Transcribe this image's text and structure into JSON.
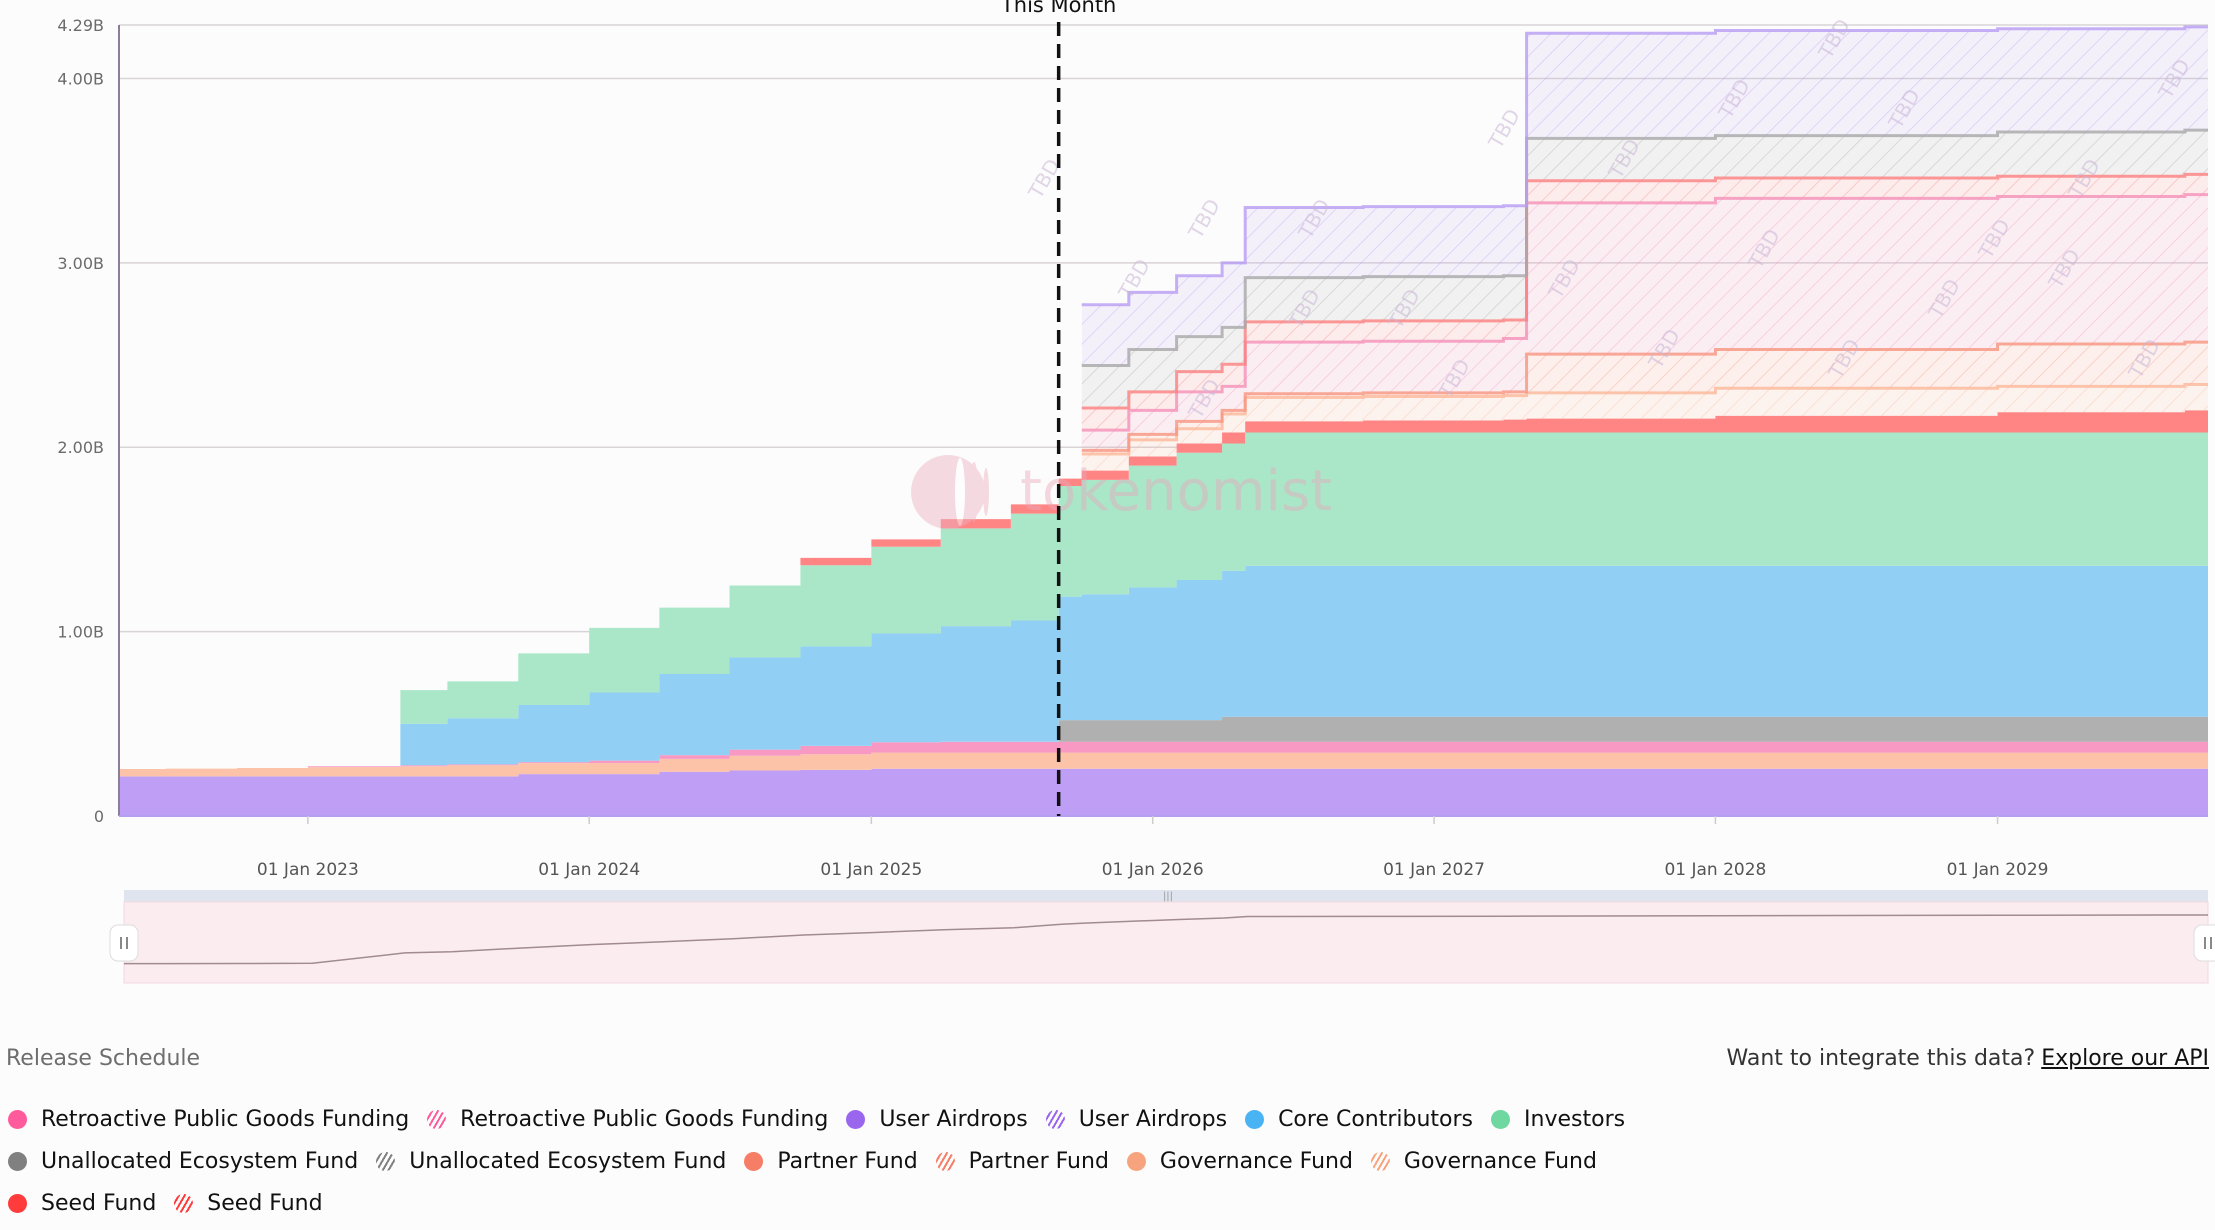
{
  "chart_data": {
    "type": "area",
    "stacked": true,
    "step": true,
    "title": "Release Schedule",
    "ylim": [
      0,
      4.29
    ],
    "y_unit": "B",
    "yticks": [
      {
        "v": 0,
        "label": "0"
      },
      {
        "v": 1,
        "label": "1.00B"
      },
      {
        "v": 2,
        "label": "2.00B"
      },
      {
        "v": 3,
        "label": "3.00B"
      },
      {
        "v": 4,
        "label": "4.00B"
      },
      {
        "v": 4.29,
        "label": "4.29B"
      }
    ],
    "xlim": [
      "2022-05-01",
      "2029-10-01"
    ],
    "xticks": [
      {
        "date": "2023-01-01",
        "label": "01 Jan 2023"
      },
      {
        "date": "2024-01-01",
        "label": "01 Jan 2024"
      },
      {
        "date": "2025-01-01",
        "label": "01 Jan 2025"
      },
      {
        "date": "2026-01-01",
        "label": "01 Jan 2026"
      },
      {
        "date": "2027-01-01",
        "label": "01 Jan 2027"
      },
      {
        "date": "2028-01-01",
        "label": "01 Jan 2028"
      },
      {
        "date": "2029-01-01",
        "label": "01 Jan 2029"
      }
    ],
    "grid": true,
    "marker": {
      "date": "2025-09-01",
      "label": "This Month"
    },
    "watermark": "tokenomist",
    "tbd_label": "TBD",
    "dates": [
      "2022-05-01",
      "2022-07-01",
      "2022-10-01",
      "2023-01-01",
      "2023-05-01",
      "2023-07-01",
      "2023-10-01",
      "2024-01-01",
      "2024-04-01",
      "2024-07-01",
      "2024-10-01",
      "2025-01-01",
      "2025-04-01",
      "2025-07-01",
      "2025-09-01",
      "2025-10-01",
      "2025-12-01",
      "2026-02-01",
      "2026-04-01",
      "2026-05-01",
      "2026-10-01",
      "2027-04-01",
      "2027-05-01",
      "2028-01-01",
      "2029-01-01",
      "2029-09-01"
    ],
    "series": [
      {
        "name": "User Airdrops",
        "hatched": false,
        "color": "#bf9ff5",
        "values": [
          0.215,
          0.215,
          0.215,
          0.215,
          0.215,
          0.215,
          0.227,
          0.227,
          0.24,
          0.247,
          0.25,
          0.256,
          0.256,
          0.256,
          0.256,
          0.256,
          0.256,
          0.256,
          0.256,
          0.256,
          0.256,
          0.256,
          0.256,
          0.256,
          0.256,
          0.256
        ]
      },
      {
        "name": "Governance Fund",
        "hatched": false,
        "color": "#fdc3a8",
        "values": [
          0.04,
          0.042,
          0.045,
          0.05,
          0.055,
          0.06,
          0.06,
          0.06,
          0.07,
          0.08,
          0.085,
          0.088,
          0.088,
          0.088,
          0.088,
          0.088,
          0.088,
          0.088,
          0.088,
          0.088,
          0.088,
          0.088,
          0.088,
          0.088,
          0.088,
          0.088
        ]
      },
      {
        "name": "Retroactive Public Goods Funding",
        "hatched": false,
        "color": "#f799c3",
        "values": [
          0,
          0,
          0,
          0.005,
          0.005,
          0.005,
          0.005,
          0.013,
          0.02,
          0.033,
          0.045,
          0.056,
          0.059,
          0.059,
          0.059,
          0.059,
          0.059,
          0.059,
          0.059,
          0.059,
          0.059,
          0.059,
          0.059,
          0.059,
          0.059,
          0.059
        ]
      },
      {
        "name": "Unallocated Ecosystem Fund",
        "hatched": false,
        "color": "#b0b0b0",
        "values": [
          0,
          0,
          0,
          0,
          0,
          0,
          0,
          0,
          0,
          0,
          0,
          0,
          0,
          0,
          0.117,
          0.117,
          0.117,
          0.117,
          0.135,
          0.135,
          0.135,
          0.135,
          0.135,
          0.135,
          0.135,
          0.135
        ]
      },
      {
        "name": "Core Contributors",
        "hatched": false,
        "color": "#91cff5",
        "values": [
          0,
          0,
          0,
          0,
          0.225,
          0.25,
          0.31,
          0.37,
          0.44,
          0.5,
          0.54,
          0.59,
          0.627,
          0.657,
          0.67,
          0.683,
          0.72,
          0.76,
          0.792,
          0.819,
          0.819,
          0.819,
          0.819,
          0.819,
          0.819,
          0.819
        ]
      },
      {
        "name": "Investors",
        "hatched": false,
        "color": "#aae6c8",
        "values": [
          0,
          0,
          0,
          0,
          0.183,
          0.2,
          0.28,
          0.35,
          0.36,
          0.39,
          0.44,
          0.47,
          0.53,
          0.58,
          0.6,
          0.62,
          0.66,
          0.69,
          0.69,
          0.723,
          0.723,
          0.723,
          0.723,
          0.723,
          0.723,
          0.723
        ]
      },
      {
        "name": "Seed Fund",
        "hatched": false,
        "color": "#ff8585",
        "values": [
          0,
          0,
          0,
          0,
          0,
          0,
          0,
          0,
          0,
          0,
          0.04,
          0.04,
          0.05,
          0.05,
          0.04,
          0.05,
          0.05,
          0.05,
          0.06,
          0.06,
          0.065,
          0.07,
          0.075,
          0.09,
          0.11,
          0.12
        ]
      },
      {
        "name": "Governance Fund",
        "hatched": true,
        "color": "#fbb89a",
        "values": [
          null,
          null,
          null,
          null,
          null,
          null,
          null,
          null,
          null,
          null,
          null,
          null,
          null,
          null,
          null,
          0.09,
          0.09,
          0.08,
          0.1,
          0.13,
          0.13,
          0.13,
          0.14,
          0.15,
          0.14,
          0.14
        ]
      },
      {
        "name": "Partner Fund",
        "hatched": true,
        "color": "#f7957f",
        "values": [
          null,
          null,
          null,
          null,
          null,
          null,
          null,
          null,
          null,
          null,
          null,
          null,
          null,
          null,
          null,
          0.02,
          0.03,
          0.04,
          0.02,
          0.02,
          0.02,
          0.02,
          0.21,
          0.21,
          0.23,
          0.23
        ]
      },
      {
        "name": "Retroactive Public Goods Funding",
        "hatched": true,
        "color": "#f590b8",
        "values": [
          null,
          null,
          null,
          null,
          null,
          null,
          null,
          null,
          null,
          null,
          null,
          null,
          null,
          null,
          null,
          0.11,
          0.13,
          0.16,
          0.13,
          0.28,
          0.28,
          0.29,
          0.82,
          0.82,
          0.8,
          0.8
        ]
      },
      {
        "name": "Seed Fund",
        "hatched": true,
        "color": "#fb8080",
        "values": [
          null,
          null,
          null,
          null,
          null,
          null,
          null,
          null,
          null,
          null,
          null,
          null,
          null,
          null,
          null,
          0.12,
          0.1,
          0.11,
          0.12,
          0.11,
          0.11,
          0.1,
          0.12,
          0.11,
          0.11,
          0.11
        ]
      },
      {
        "name": "Unallocated Ecosystem Fund",
        "hatched": true,
        "color": "#a8a8a8",
        "values": [
          null,
          null,
          null,
          null,
          null,
          null,
          null,
          null,
          null,
          null,
          null,
          null,
          null,
          null,
          null,
          0.23,
          0.23,
          0.19,
          0.2,
          0.24,
          0.24,
          0.24,
          0.23,
          0.23,
          0.24,
          0.24
        ]
      },
      {
        "name": "User Airdrops",
        "hatched": true,
        "color": "#b89cf2",
        "values": [
          null,
          null,
          null,
          null,
          null,
          null,
          null,
          null,
          null,
          null,
          null,
          null,
          null,
          null,
          null,
          0.33,
          0.31,
          0.33,
          0.35,
          0.38,
          0.38,
          0.38,
          0.57,
          0.57,
          0.56,
          0.56
        ]
      }
    ]
  },
  "section_title": "Release Schedule",
  "api_promo": {
    "text": "Want to integrate this data?",
    "link": "Explore our API"
  },
  "legend": [
    [
      {
        "label": "Retroactive Public Goods Funding",
        "color": "#ff5a9c",
        "hatched": false
      },
      {
        "label": "Retroactive Public Goods Funding",
        "color": "#ff5a9c",
        "hatched": true
      },
      {
        "label": "User Airdrops",
        "color": "#9a66ee",
        "hatched": false
      },
      {
        "label": "User Airdrops",
        "color": "#9a66ee",
        "hatched": true
      },
      {
        "label": "Core Contributors",
        "color": "#4ab3f4",
        "hatched": false
      },
      {
        "label": "Investors",
        "color": "#6ed8a0",
        "hatched": false
      }
    ],
    [
      {
        "label": "Unallocated Ecosystem Fund",
        "color": "#808080",
        "hatched": false
      },
      {
        "label": "Unallocated Ecosystem Fund",
        "color": "#808080",
        "hatched": true
      },
      {
        "label": "Partner Fund",
        "color": "#f77e66",
        "hatched": false
      },
      {
        "label": "Partner Fund",
        "color": "#f77e66",
        "hatched": true
      },
      {
        "label": "Governance Fund",
        "color": "#f7a47e",
        "hatched": false
      },
      {
        "label": "Governance Fund",
        "color": "#f7a47e",
        "hatched": true
      }
    ],
    [
      {
        "label": "Seed Fund",
        "color": "#ff3b3b",
        "hatched": false
      },
      {
        "label": "Seed Fund",
        "color": "#ff3b3b",
        "hatched": true
      }
    ]
  ]
}
